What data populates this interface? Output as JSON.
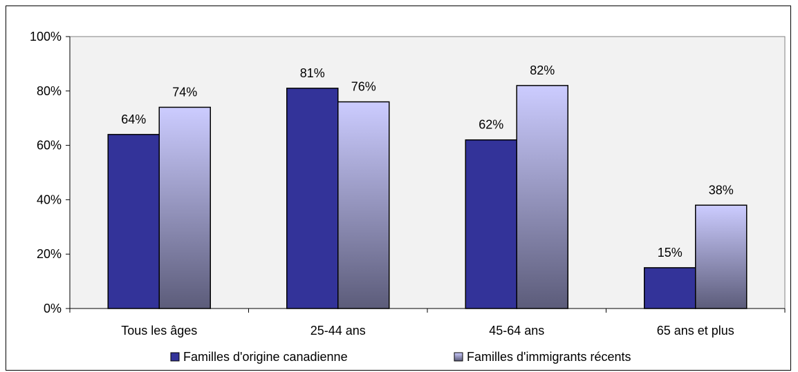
{
  "colors": {
    "canadian_fill": "#333399",
    "immigrant_top": "#ccccff",
    "immigrant_bottom": "#5c5c7a",
    "plot_area": "#f2f2f2",
    "frame": "#000000"
  },
  "chart_data": {
    "type": "bar",
    "categories": [
      "Tous les âges",
      "25-44 ans",
      "45-64 ans",
      "65 ans et plus"
    ],
    "series": [
      {
        "name": "Familles d'origine canadienne",
        "values": [
          64,
          81,
          62,
          15
        ],
        "labels": [
          "64%",
          "81%",
          "62%",
          "15%"
        ]
      },
      {
        "name": "Familles d'immigrants récents",
        "values": [
          74,
          76,
          82,
          38
        ],
        "labels": [
          "74%",
          "76%",
          "82%",
          "38%"
        ]
      }
    ],
    "ylim": [
      0,
      100
    ],
    "yticks": [
      0,
      20,
      40,
      60,
      80,
      100
    ],
    "ytick_labels": [
      "0%",
      "20%",
      "40%",
      "60%",
      "80%",
      "100%"
    ],
    "grid": false,
    "legend_position": "bottom",
    "title": "",
    "xlabel": "",
    "ylabel": ""
  }
}
